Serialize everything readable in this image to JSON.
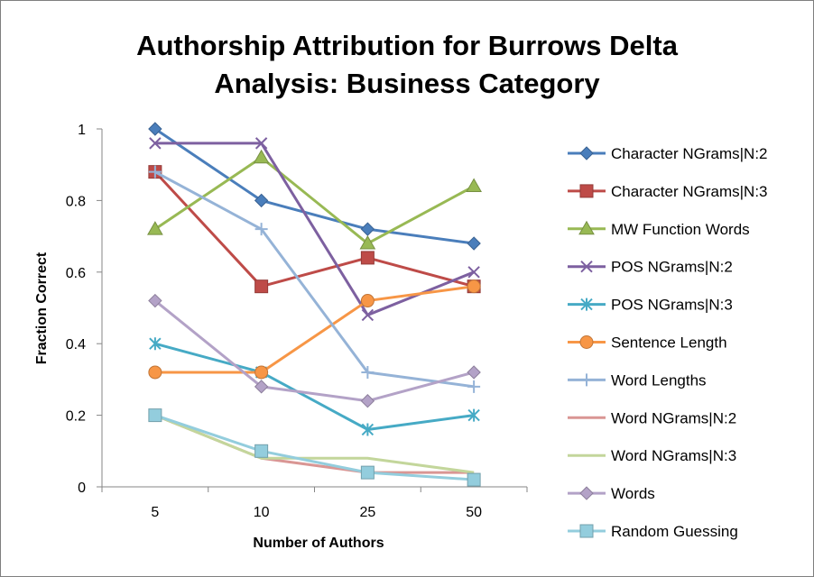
{
  "chart_data": {
    "type": "line",
    "title_lines": [
      "Authorship Attribution for Burrows Delta",
      "Analysis: Business Category"
    ],
    "xlabel": "Number of Authors",
    "ylabel": "Fraction Correct",
    "categories": [
      "5",
      "10",
      "25",
      "50"
    ],
    "ylim": [
      0,
      1
    ],
    "yticks": [
      "0",
      "0.2",
      "0.4",
      "0.6",
      "0.8",
      "1"
    ],
    "grid": false,
    "legend_position": "right",
    "series": [
      {
        "name": "Character NGrams|N:2",
        "values": [
          1.0,
          0.8,
          0.72,
          0.68
        ],
        "color": "#4a7ebb",
        "marker": "diamond"
      },
      {
        "name": "Character NGrams|N:3",
        "values": [
          0.88,
          0.56,
          0.64,
          0.56
        ],
        "color": "#be4b48",
        "marker": "square"
      },
      {
        "name": "MW Function Words",
        "values": [
          0.72,
          0.92,
          0.68,
          0.84
        ],
        "color": "#98b954",
        "marker": "triangle"
      },
      {
        "name": "POS NGrams|N:2",
        "values": [
          0.96,
          0.96,
          0.48,
          0.6
        ],
        "color": "#7d60a0",
        "marker": "x"
      },
      {
        "name": "POS NGrams|N:3",
        "values": [
          0.4,
          0.32,
          0.16,
          0.2
        ],
        "color": "#46aac5",
        "marker": "star"
      },
      {
        "name": "Sentence Length",
        "values": [
          0.32,
          0.32,
          0.52,
          0.56
        ],
        "color": "#f79646",
        "marker": "circle"
      },
      {
        "name": "Word Lengths",
        "values": [
          0.88,
          0.72,
          0.32,
          0.28
        ],
        "color": "#95b3d7",
        "marker": "plus"
      },
      {
        "name": "Word NGrams|N:2",
        "values": [
          0.2,
          0.08,
          0.04,
          0.04
        ],
        "color": "#d99694",
        "marker": "dash"
      },
      {
        "name": "Word NGrams|N:3",
        "values": [
          0.2,
          0.08,
          0.08,
          0.04
        ],
        "color": "#c3d69b",
        "marker": "dash"
      },
      {
        "name": "Words",
        "values": [
          0.52,
          0.28,
          0.24,
          0.32
        ],
        "color": "#b3a2c7",
        "marker": "diamond"
      },
      {
        "name": "Random Guessing",
        "values": [
          0.2,
          0.1,
          0.04,
          0.02
        ],
        "color": "#93cddd",
        "marker": "square"
      }
    ]
  }
}
